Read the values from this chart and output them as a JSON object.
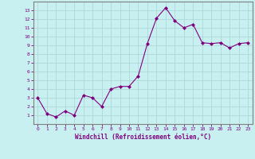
{
  "x": [
    0,
    1,
    2,
    3,
    4,
    5,
    6,
    7,
    8,
    9,
    10,
    11,
    12,
    13,
    14,
    15,
    16,
    17,
    18,
    19,
    20,
    21,
    22,
    23
  ],
  "y": [
    3.0,
    1.2,
    0.8,
    1.5,
    1.0,
    3.3,
    3.0,
    2.0,
    4.0,
    4.3,
    4.3,
    5.5,
    9.2,
    12.1,
    13.3,
    11.8,
    11.0,
    11.4,
    9.3,
    9.2,
    9.3,
    8.7,
    9.2,
    9.3
  ],
  "line_color": "#800080",
  "marker": "D",
  "marker_size": 2.0,
  "bg_color": "#c8f0f0",
  "grid_color": "#b0d8d8",
  "xlabel": "Windchill (Refroidissement éolien,°C)",
  "xlim": [
    -0.5,
    23.5
  ],
  "ylim": [
    0,
    14
  ],
  "yticks": [
    1,
    2,
    3,
    4,
    5,
    6,
    7,
    8,
    9,
    10,
    11,
    12,
    13
  ],
  "xticks": [
    0,
    1,
    2,
    3,
    4,
    5,
    6,
    7,
    8,
    9,
    10,
    11,
    12,
    13,
    14,
    15,
    16,
    17,
    18,
    19,
    20,
    21,
    22,
    23
  ],
  "tick_color": "#800080",
  "label_color": "#800080",
  "axis_color": "#800080",
  "spine_color": "#808080",
  "tick_fontsize": 4.5,
  "xlabel_fontsize": 5.5
}
